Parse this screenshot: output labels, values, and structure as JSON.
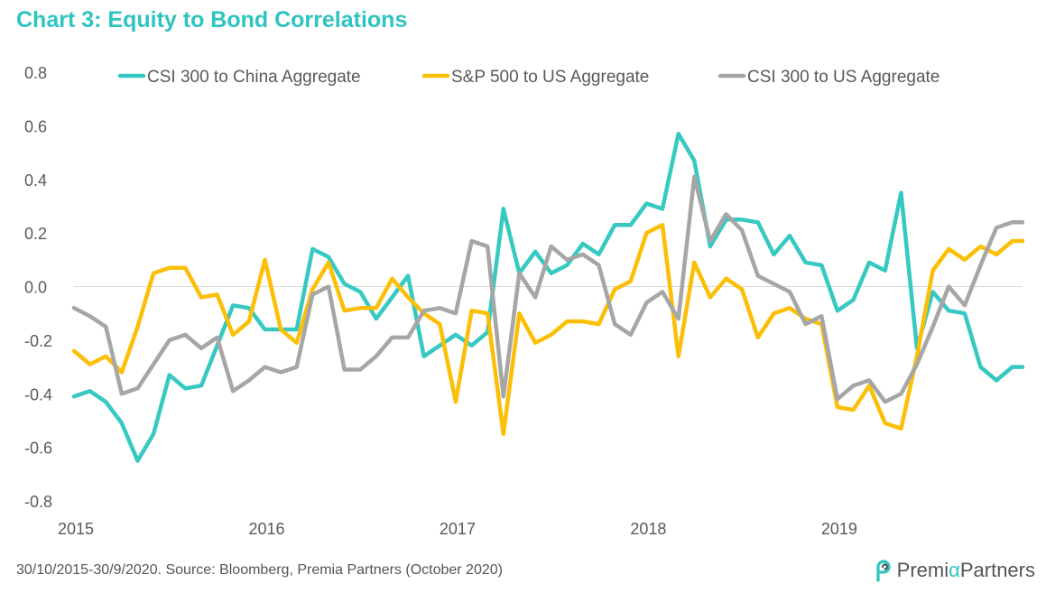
{
  "title": "Chart 3: Equity to Bond Correlations",
  "footer": "30/10/2015-30/9/2020. Source: Bloomberg, Premia Partners (October 2020)",
  "logo": {
    "part1": "Premi",
    "alpha": "α",
    "part2": "Partners"
  },
  "colors": {
    "title": "#2ec4c0",
    "series": [
      "#36c9c2",
      "#fcbf07",
      "#a6a6a6"
    ]
  },
  "chart_data": {
    "type": "line",
    "title": "Chart 3: Equity to Bond Correlations",
    "xlabel": "",
    "ylabel": "",
    "x_tick_labels": [
      "2015",
      "2016",
      "2017",
      "2018",
      "2019"
    ],
    "x_ticks": [
      2015,
      2016,
      2017,
      2018,
      2019
    ],
    "xlim": [
      2015.0,
      2019.97
    ],
    "ylim": [
      -0.8,
      0.8
    ],
    "y_ticks": [
      -0.8,
      -0.6,
      -0.4,
      -0.2,
      0.0,
      0.2,
      0.4,
      0.6,
      0.8
    ],
    "y_tick_labels": [
      "-0.8",
      "-0.6",
      "-0.4",
      "-0.2",
      "0.0",
      "0.2",
      "0.4",
      "0.6",
      "0.8"
    ],
    "grid": "zero-line only",
    "legend_position": "top",
    "x": [
      2015.0,
      2015.0833,
      2015.1667,
      2015.25,
      2015.3333,
      2015.4167,
      2015.5,
      2015.5833,
      2015.6667,
      2015.75,
      2015.8333,
      2015.9167,
      2016.0,
      2016.0833,
      2016.1667,
      2016.25,
      2016.3333,
      2016.4167,
      2016.5,
      2016.5833,
      2016.6667,
      2016.75,
      2016.8333,
      2016.9167,
      2017.0,
      2017.0833,
      2017.1667,
      2017.25,
      2017.3333,
      2017.4167,
      2017.5,
      2017.5833,
      2017.6667,
      2017.75,
      2017.8333,
      2017.9167,
      2018.0,
      2018.0833,
      2018.1667,
      2018.25,
      2018.3333,
      2018.4167,
      2018.5,
      2018.5833,
      2018.6667,
      2018.75,
      2018.8333,
      2018.9167,
      2019.0,
      2019.0833,
      2019.1667,
      2019.25,
      2019.3333,
      2019.4167,
      2019.5,
      2019.5833,
      2019.6667,
      2019.75,
      2019.8333,
      2019.9167,
      2019.97
    ],
    "series": [
      {
        "name": "CSI 300 to China Aggregate",
        "color": "#36c9c2",
        "values": [
          -0.41,
          -0.39,
          -0.43,
          -0.51,
          -0.65,
          -0.55,
          -0.33,
          -0.38,
          -0.37,
          -0.22,
          -0.07,
          -0.08,
          -0.16,
          -0.16,
          -0.16,
          0.14,
          0.11,
          0.01,
          -0.02,
          -0.12,
          -0.04,
          0.04,
          -0.26,
          -0.22,
          -0.18,
          -0.22,
          -0.17,
          0.29,
          0.05,
          0.13,
          0.05,
          0.08,
          0.16,
          0.12,
          0.23,
          0.23,
          0.31,
          0.29,
          0.57,
          0.47,
          0.15,
          0.25,
          0.25,
          0.24,
          0.12,
          0.19,
          0.09,
          0.08,
          -0.09,
          -0.05,
          0.09,
          0.06,
          0.35,
          -0.23,
          -0.02,
          -0.09,
          -0.1,
          -0.3,
          -0.35,
          -0.3,
          -0.3
        ]
      },
      {
        "name": "S&P 500 to US Aggregate",
        "color": "#fcbf07",
        "values": [
          -0.24,
          -0.29,
          -0.26,
          -0.32,
          -0.15,
          0.05,
          0.07,
          0.07,
          -0.04,
          -0.03,
          -0.18,
          -0.13,
          0.1,
          -0.16,
          -0.21,
          -0.01,
          0.09,
          -0.09,
          -0.08,
          -0.08,
          0.03,
          -0.04,
          -0.1,
          -0.14,
          -0.43,
          -0.09,
          -0.1,
          -0.55,
          -0.1,
          -0.21,
          -0.18,
          -0.13,
          -0.13,
          -0.14,
          -0.01,
          0.02,
          0.2,
          0.23,
          -0.26,
          0.09,
          -0.04,
          0.03,
          -0.01,
          -0.19,
          -0.1,
          -0.08,
          -0.12,
          -0.14,
          -0.45,
          -0.46,
          -0.37,
          -0.51,
          -0.53,
          -0.26,
          0.06,
          0.14,
          0.1,
          0.15,
          0.12,
          0.17,
          0.17
        ]
      },
      {
        "name": "CSI 300 to US Aggregate",
        "color": "#a6a6a6",
        "values": [
          -0.08,
          -0.11,
          -0.15,
          -0.4,
          -0.38,
          -0.29,
          -0.2,
          -0.18,
          -0.23,
          -0.19,
          -0.39,
          -0.35,
          -0.3,
          -0.32,
          -0.3,
          -0.03,
          0.0,
          -0.31,
          -0.31,
          -0.26,
          -0.19,
          -0.19,
          -0.09,
          -0.08,
          -0.1,
          0.17,
          0.15,
          -0.41,
          0.05,
          -0.04,
          0.15,
          0.1,
          0.12,
          0.08,
          -0.14,
          -0.18,
          -0.06,
          -0.02,
          -0.12,
          0.41,
          0.17,
          0.27,
          0.21,
          0.04,
          0.01,
          -0.02,
          -0.14,
          -0.11,
          -0.42,
          -0.37,
          -0.35,
          -0.43,
          -0.4,
          -0.29,
          -0.15,
          0.0,
          -0.07,
          0.08,
          0.22,
          0.24,
          0.24
        ]
      }
    ]
  }
}
